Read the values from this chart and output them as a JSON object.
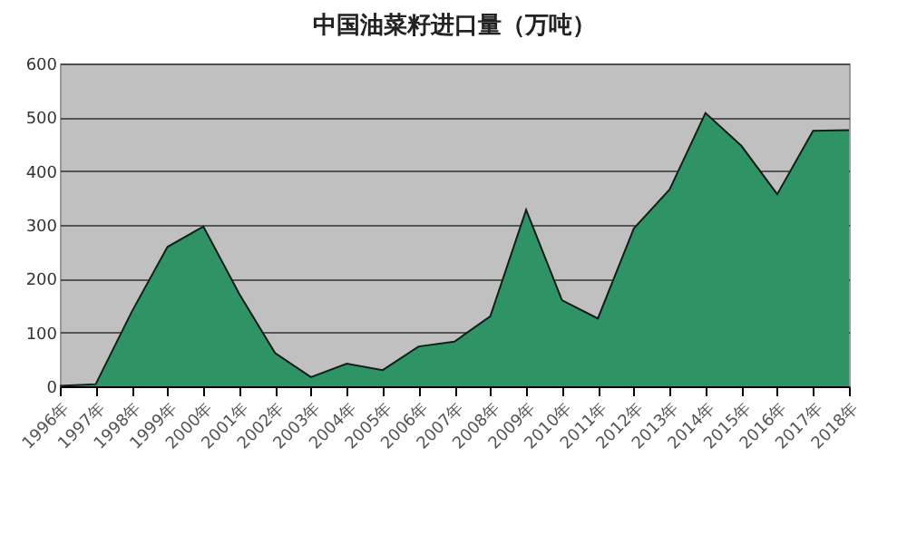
{
  "chart_data": {
    "type": "area",
    "title": "中国油菜籽进口量（万吨）",
    "categories": [
      "1996年",
      "1997年",
      "1998年",
      "1999年",
      "2000年",
      "2001年",
      "2002年",
      "2003年",
      "2004年",
      "2005年",
      "2006年",
      "2007年",
      "2008年",
      "2009年",
      "2010年",
      "2011年",
      "2012年",
      "2013年",
      "2014年",
      "2015年",
      "2016年",
      "2017年",
      "2018年"
    ],
    "series": [
      {
        "color": "#2e9465",
        "values": [
          1,
          4,
          138,
          259,
          297,
          172,
          62,
          17,
          42,
          30,
          74,
          83,
          130,
          328,
          160,
          126,
          293,
          366,
          508,
          447,
          357,
          475,
          476
        ]
      }
    ],
    "ylim": [
      0,
      600
    ],
    "yticks": [
      0,
      100,
      200,
      300,
      400,
      500,
      600
    ],
    "grid": "y"
  }
}
